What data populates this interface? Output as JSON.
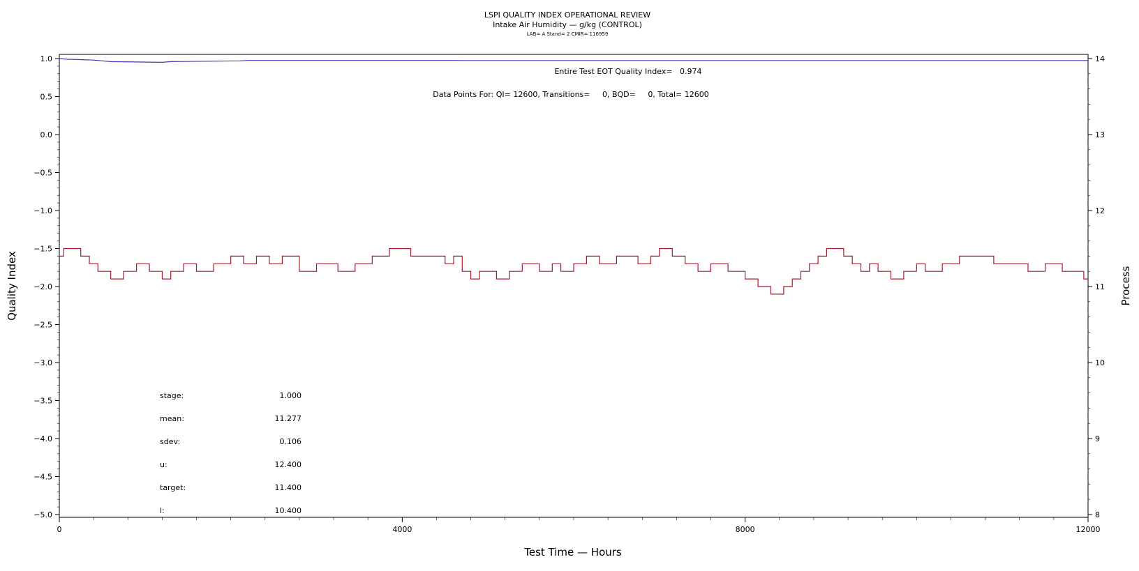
{
  "chart_data": {
    "type": "line",
    "title": "LSPI QUALITY INDEX OPERATIONAL REVIEW",
    "subtitle": "Intake Air Humidity — g/kg (CONTROL)",
    "subtitle2": "LAB= A Stand= 2 CMIR= 116959",
    "xlabel": "Test Time — Hours",
    "ylabel": "Quality Index",
    "y2label": "Process",
    "xlim": [
      0,
      12000
    ],
    "ylim": [
      -5.0,
      1.0
    ],
    "y2lim": [
      8,
      14
    ],
    "x_ticks": [
      0,
      4000,
      8000,
      12000
    ],
    "y_ticks": [
      "1.0",
      "0.5",
      "0.0",
      "−0.5",
      "−1.0",
      "−1.5",
      "−2.0",
      "−2.5",
      "−3.0",
      "−3.5",
      "−4.0",
      "−4.5",
      "−5.0"
    ],
    "y2_ticks": [
      14,
      13,
      12,
      11,
      10,
      9,
      8
    ],
    "grid": false,
    "annotations": [
      "Entire Test EOT Quality Index=   0.974",
      "Data Points For: QI= 12600, Transitions=     0, BQD=     0, Total= 12600"
    ],
    "series": [
      {
        "axis": "left",
        "color": "#3b3bb8",
        "x": [
          0,
          100,
          150,
          400,
          600,
          1200,
          1300,
          2100,
          2200,
          4600,
          4700,
          12000
        ],
        "y": [
          1.0,
          0.99,
          0.99,
          0.98,
          0.96,
          0.95,
          0.96,
          0.97,
          0.975,
          0.975,
          0.974,
          0.974
        ]
      },
      {
        "axis": "right",
        "color": "#a01c2c",
        "x": [
          0,
          50,
          100,
          250,
          350,
          450,
          600,
          750,
          900,
          1050,
          1200,
          1300,
          1450,
          1600,
          1800,
          2000,
          2150,
          2300,
          2450,
          2600,
          2800,
          3000,
          3250,
          3450,
          3650,
          3850,
          4000,
          4100,
          4350,
          4500,
          4600,
          4700,
          4800,
          4900,
          5000,
          5100,
          5250,
          5400,
          5600,
          5750,
          5850,
          6000,
          6150,
          6300,
          6500,
          6750,
          6900,
          7000,
          7150,
          7300,
          7450,
          7600,
          7800,
          8000,
          8150,
          8300,
          8450,
          8550,
          8650,
          8750,
          8850,
          8950,
          9050,
          9150,
          9250,
          9350,
          9450,
          9550,
          9700,
          9850,
          10000,
          10100,
          10300,
          10500,
          10700,
          10900,
          11100,
          11300,
          11500,
          11700,
          11900,
          11950,
          12000
        ],
        "y": [
          11.4,
          11.5,
          11.5,
          11.4,
          11.3,
          11.2,
          11.1,
          11.2,
          11.3,
          11.2,
          11.1,
          11.2,
          11.3,
          11.2,
          11.3,
          11.4,
          11.3,
          11.4,
          11.3,
          11.4,
          11.2,
          11.3,
          11.2,
          11.3,
          11.4,
          11.5,
          11.5,
          11.4,
          11.4,
          11.3,
          11.4,
          11.2,
          11.1,
          11.2,
          11.2,
          11.1,
          11.2,
          11.3,
          11.2,
          11.3,
          11.2,
          11.3,
          11.4,
          11.3,
          11.4,
          11.3,
          11.4,
          11.5,
          11.4,
          11.3,
          11.2,
          11.3,
          11.2,
          11.1,
          11.0,
          10.9,
          11.0,
          11.1,
          11.2,
          11.3,
          11.4,
          11.5,
          11.5,
          11.4,
          11.3,
          11.2,
          11.3,
          11.2,
          11.1,
          11.2,
          11.3,
          11.2,
          11.3,
          11.4,
          11.4,
          11.3,
          11.3,
          11.2,
          11.3,
          11.2,
          11.2,
          11.1,
          11.1
        ]
      }
    ],
    "stats": [
      {
        "label": "stage:",
        "value": "1.000"
      },
      {
        "label": "mean:",
        "value": "11.277"
      },
      {
        "label": "sdev:",
        "value": "0.106"
      },
      {
        "label": "u:",
        "value": "12.400"
      },
      {
        "label": "target:",
        "value": "11.400"
      },
      {
        "label": "l:",
        "value": "10.400"
      }
    ]
  }
}
